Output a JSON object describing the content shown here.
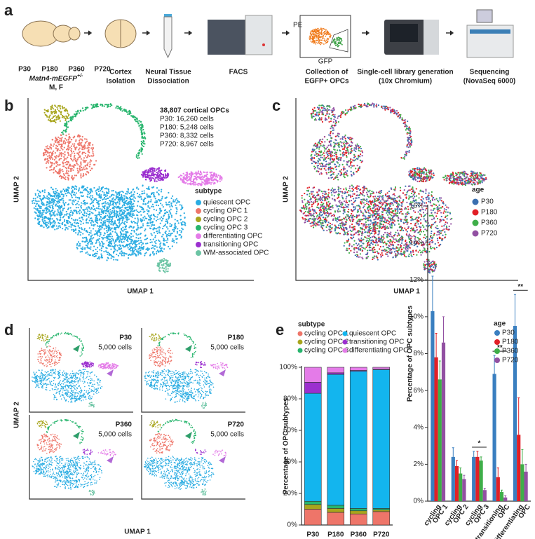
{
  "panel_labels": [
    "a",
    "b",
    "c",
    "d",
    "e"
  ],
  "workflow": {
    "ages": [
      "P30",
      "P180",
      "P360",
      "P720"
    ],
    "mouse_line": "Matn4-mEGFP",
    "genotype": "+/-",
    "sex": "M, F",
    "steps": [
      [
        "Cortex",
        "Isolation"
      ],
      [
        "Neural Tissue",
        "Dissociation"
      ],
      [
        "FACS"
      ],
      [
        "Collection of",
        "EGFP+ OPCs"
      ],
      [
        "Single-cell library generation",
        "(10x Chromium)"
      ],
      [
        "Sequencing",
        "(NovaSeq 6000)"
      ]
    ],
    "flow_axes": [
      "PE",
      "GFP"
    ]
  },
  "umap_b": {
    "x_label": "UMAP 1",
    "y_label": "UMAP 2",
    "stats": [
      "38,807 cortical OPCs",
      "P30: 16,260 cells",
      "P180: 5,248 cells",
      "P360: 8,332 cells",
      "P720: 8,967 cells"
    ],
    "legend_title": "subtype",
    "legend": [
      {
        "name": "quiescent OPC",
        "color": "#2aace2"
      },
      {
        "name": "cycling OPC 1",
        "color": "#ee7569"
      },
      {
        "name": "cycling OPC 2",
        "color": "#a8a51d"
      },
      {
        "name": "cycling OPC 3",
        "color": "#27b56d"
      },
      {
        "name": "differentiating OPC",
        "color": "#e47be8"
      },
      {
        "name": "transitioning OPC",
        "color": "#9b2fcf"
      },
      {
        "name": "WM-associated OPC",
        "color": "#6cc4a4"
      }
    ]
  },
  "umap_c": {
    "x_label": "UMAP 1",
    "y_label": "UMAP 2",
    "legend_title": "age",
    "legend": [
      {
        "name": "P30",
        "color": "#3a6fb0"
      },
      {
        "name": "P180",
        "color": "#e11f26"
      },
      {
        "name": "P360",
        "color": "#3fae49"
      },
      {
        "name": "P720",
        "color": "#9250a2"
      }
    ]
  },
  "umap_d": {
    "x_label": "UMAP 1",
    "y_label": "UMAP 2",
    "panels": [
      {
        "age": "P30",
        "cells": "5,000 cells"
      },
      {
        "age": "P180",
        "cells": "5,000 cells"
      },
      {
        "age": "P360",
        "cells": "5,000 cells"
      },
      {
        "age": "P720",
        "cells": "5,000 cells"
      }
    ]
  },
  "chart_data": [
    {
      "type": "stacked_bar",
      "y_label": "Percentage of OPC subtypes",
      "legend_title": "subtype",
      "categories": [
        "P30",
        "P180",
        "P360",
        "P720"
      ],
      "series": [
        {
          "name": "cycling OPC 1",
          "color": "#ee7569",
          "values": [
            10,
            8,
            7,
            8.5
          ]
        },
        {
          "name": "cycling OPC 2",
          "color": "#a8a51d",
          "values": [
            3,
            2.5,
            2,
            1
          ]
        },
        {
          "name": "cycling OPC 3",
          "color": "#27b56d",
          "values": [
            2,
            2,
            1.5,
            1
          ]
        },
        {
          "name": "quiescent OPC",
          "color": "#13b5ee",
          "values": [
            68.5,
            83,
            87,
            88
          ]
        },
        {
          "name": "transitioning OPC",
          "color": "#9b2fcf",
          "values": [
            7,
            1,
            0.5,
            0.3
          ]
        },
        {
          "name": "differentiating OPC",
          "color": "#e47be8",
          "values": [
            9.5,
            3.5,
            2,
            1.2
          ]
        }
      ],
      "ylim": [
        0,
        100
      ],
      "yticks": [
        {
          "value": 0,
          "label": "0%"
        },
        {
          "value": 20,
          "label": "20%"
        },
        {
          "value": 40,
          "label": "40%"
        },
        {
          "value": 60,
          "label": "60%"
        },
        {
          "value": 80,
          "label": "80%"
        },
        {
          "value": 100,
          "label": "100%"
        }
      ]
    },
    {
      "type": "bar",
      "y_label": "Percentage of OPC subtypes",
      "legend_title": "age",
      "categories": [
        [
          "cycling",
          "OPC 1"
        ],
        [
          "cycling",
          "OPC 2"
        ],
        [
          "cycling",
          "OPC 3"
        ],
        [
          "transitioning",
          "OPC"
        ],
        [
          "differentiating",
          "OPC"
        ]
      ],
      "significance": [
        null,
        null,
        "*",
        "**",
        "**"
      ],
      "series": [
        {
          "name": "P30",
          "color": "#3a7fc0",
          "values": [
            10.3,
            2.4,
            2.4,
            6.9,
            9.5
          ],
          "errors": [
            1.9,
            0.5,
            0.3,
            1.0,
            1.7
          ]
        },
        {
          "name": "P180",
          "color": "#e11f26",
          "values": [
            7.8,
            1.9,
            2.4,
            1.3,
            3.6
          ],
          "errors": [
            1.3,
            0.3,
            0.3,
            0.5,
            2.0
          ]
        },
        {
          "name": "P360",
          "color": "#3fae49",
          "values": [
            6.6,
            1.5,
            2.2,
            0.5,
            2.0
          ],
          "errors": [
            1.0,
            0.3,
            0.2,
            0.1,
            0.8
          ]
        },
        {
          "name": "P720",
          "color": "#9250a2",
          "values": [
            8.6,
            1.2,
            0.6,
            0.2,
            1.6
          ],
          "errors": [
            1.4,
            0.2,
            0.1,
            0.1,
            0.4
          ]
        }
      ],
      "ylim": [
        0,
        16
      ],
      "yticks": [
        {
          "value": 0,
          "label": "0%"
        },
        {
          "value": 2,
          "label": "2%"
        },
        {
          "value": 4,
          "label": "4%"
        },
        {
          "value": 6,
          "label": "6%"
        },
        {
          "value": 8,
          "label": "8%"
        },
        {
          "value": 10,
          "label": "10%"
        },
        {
          "value": 12,
          "label": "12%"
        },
        {
          "value": 14,
          "label": "14%"
        },
        {
          "value": 16,
          "label": "16%"
        }
      ]
    }
  ]
}
